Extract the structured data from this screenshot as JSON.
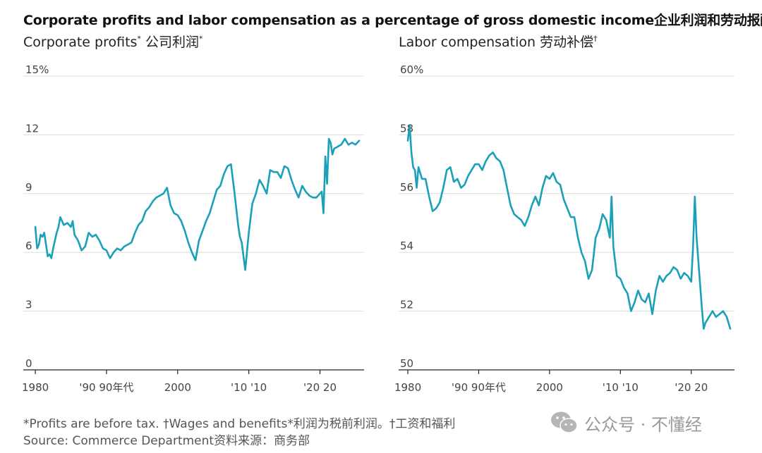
{
  "title": "Corporate profits and labor compensation as a percentage of gross domestic income企业利润和劳动报酬占",
  "footnote": "*Profits are before tax. †Wages and benefits*利润为税前利润。†工资和福利",
  "source": "Source: Commerce Department资料来源：商务部",
  "watermark": {
    "icon": "wechat-icon",
    "text": "公众号 · 不懂经"
  },
  "colors": {
    "line": "#1aa0b8",
    "grid": "#dddddd",
    "axis": "#222222",
    "text": "#444444"
  },
  "chart_data": [
    {
      "type": "line",
      "title": "Corporate profits",
      "title_mark": "*",
      "title_cn": "公司利润",
      "title_cn_mark": "*",
      "ylim": [
        0,
        15
      ],
      "yticks": [
        0,
        3,
        6,
        9,
        12,
        15
      ],
      "ytick_labels": [
        "0",
        "3",
        "6",
        "9",
        "12",
        "15%"
      ],
      "xlim": [
        1979,
        2026
      ],
      "xticks": [
        1980,
        1990,
        2000,
        2010,
        2020
      ],
      "xtick_labels": [
        "1980",
        "'90 90年代",
        "2000",
        "'10 '10",
        "'20 20"
      ],
      "series": [
        {
          "name": "Corporate profits",
          "x": [
            1980.0,
            1980.25,
            1980.5,
            1980.75,
            1981.0,
            1981.25,
            1981.5,
            1981.75,
            1982.0,
            1982.25,
            1982.5,
            1982.75,
            1983.0,
            1983.25,
            1983.5,
            1983.75,
            1984.0,
            1984.5,
            1985.0,
            1985.25,
            1985.5,
            1986.0,
            1986.5,
            1987.0,
            1987.5,
            1988.0,
            1988.5,
            1989.0,
            1989.5,
            1990.0,
            1990.5,
            1991.0,
            1991.5,
            1992.0,
            1992.5,
            1993.0,
            1993.5,
            1994.0,
            1994.5,
            1995.0,
            1995.5,
            1996.0,
            1996.5,
            1997.0,
            1997.5,
            1998.0,
            1998.5,
            1999.0,
            1999.5,
            2000.0,
            2000.5,
            2001.0,
            2001.5,
            2002.0,
            2002.5,
            2003.0,
            2003.5,
            2004.0,
            2004.5,
            2005.0,
            2005.5,
            2006.0,
            2006.5,
            2007.0,
            2007.5,
            2008.0,
            2008.5,
            2008.75,
            2009.0,
            2009.5,
            2010.0,
            2010.5,
            2011.0,
            2011.5,
            2012.0,
            2012.5,
            2013.0,
            2013.5,
            2014.0,
            2014.5,
            2015.0,
            2015.5,
            2016.0,
            2016.5,
            2017.0,
            2017.5,
            2018.0,
            2018.5,
            2019.0,
            2019.5,
            2020.0,
            2020.25,
            2020.5,
            2020.75,
            2021.0,
            2021.25,
            2021.5,
            2021.75,
            2022.0,
            2022.5,
            2023.0,
            2023.5,
            2024.0,
            2024.5,
            2025.0,
            2025.5
          ],
          "values": [
            7.3,
            6.2,
            6.4,
            6.9,
            6.8,
            7.0,
            6.4,
            5.8,
            5.9,
            5.7,
            6.2,
            6.6,
            7.0,
            7.3,
            7.8,
            7.6,
            7.4,
            7.5,
            7.3,
            7.6,
            6.9,
            6.6,
            6.1,
            6.3,
            7.0,
            6.8,
            6.9,
            6.6,
            6.2,
            6.1,
            5.7,
            6.0,
            6.2,
            6.1,
            6.3,
            6.4,
            6.5,
            7.0,
            7.4,
            7.6,
            8.1,
            8.3,
            8.6,
            8.8,
            8.9,
            9.0,
            9.3,
            8.4,
            8.0,
            7.9,
            7.6,
            7.1,
            6.5,
            6.0,
            5.6,
            6.6,
            7.1,
            7.6,
            8.0,
            8.6,
            9.2,
            9.4,
            10.0,
            10.4,
            10.5,
            9.0,
            7.4,
            6.8,
            6.5,
            5.1,
            7.0,
            8.5,
            9.0,
            9.7,
            9.4,
            9.0,
            10.2,
            10.1,
            10.1,
            9.8,
            10.4,
            10.3,
            9.7,
            9.2,
            8.8,
            9.4,
            9.1,
            8.9,
            8.8,
            8.8,
            9.0,
            9.1,
            8.0,
            10.9,
            9.5,
            11.8,
            11.6,
            11.0,
            11.3,
            11.4,
            11.5,
            11.8,
            11.5,
            11.6,
            11.5,
            11.7
          ]
        }
      ]
    },
    {
      "type": "line",
      "title": "Labor compensation",
      "title_mark": "",
      "title_cn": "劳动补偿",
      "title_cn_mark": "†",
      "ylim": [
        50,
        60
      ],
      "yticks": [
        50,
        52,
        54,
        56,
        58,
        60
      ],
      "ytick_labels": [
        "50",
        "52",
        "54",
        "56",
        "58",
        "60%"
      ],
      "xlim": [
        1979,
        2026
      ],
      "xticks": [
        1980,
        1990,
        2000,
        2010,
        2020
      ],
      "xtick_labels": [
        "1980",
        "'90 90年代",
        "2000",
        "'10 '10",
        "'20 20"
      ],
      "series": [
        {
          "name": "Labor compensation",
          "x": [
            1980.0,
            1980.25,
            1980.5,
            1980.75,
            1981.0,
            1981.25,
            1981.5,
            1982.0,
            1982.5,
            1983.0,
            1983.5,
            1984.0,
            1984.5,
            1985.0,
            1985.5,
            1986.0,
            1986.5,
            1987.0,
            1987.5,
            1988.0,
            1988.5,
            1989.0,
            1989.5,
            1990.0,
            1990.5,
            1991.0,
            1991.5,
            1992.0,
            1992.5,
            1993.0,
            1993.5,
            1994.0,
            1994.5,
            1995.0,
            1995.5,
            1996.0,
            1996.5,
            1997.0,
            1997.5,
            1998.0,
            1998.5,
            1999.0,
            1999.5,
            2000.0,
            2000.5,
            2001.0,
            2001.5,
            2002.0,
            2002.5,
            2003.0,
            2003.5,
            2004.0,
            2004.5,
            2005.0,
            2005.5,
            2006.0,
            2006.5,
            2007.0,
            2007.5,
            2008.0,
            2008.5,
            2008.75,
            2009.0,
            2009.5,
            2010.0,
            2010.5,
            2011.0,
            2011.5,
            2012.0,
            2012.5,
            2013.0,
            2013.5,
            2014.0,
            2014.5,
            2015.0,
            2015.5,
            2016.0,
            2016.5,
            2017.0,
            2017.5,
            2018.0,
            2018.5,
            2019.0,
            2019.5,
            2020.0,
            2020.25,
            2020.5,
            2020.75,
            2021.0,
            2021.25,
            2021.5,
            2021.75,
            2022.0,
            2022.5,
            2023.0,
            2023.5,
            2024.0,
            2024.5,
            2025.0,
            2025.5
          ],
          "values": [
            57.8,
            58.3,
            57.4,
            56.9,
            56.8,
            56.2,
            56.9,
            56.5,
            56.5,
            55.9,
            55.4,
            55.5,
            55.7,
            56.2,
            56.8,
            56.9,
            56.4,
            56.5,
            56.2,
            56.3,
            56.6,
            56.8,
            57.0,
            57.0,
            56.8,
            57.1,
            57.3,
            57.4,
            57.2,
            57.1,
            56.8,
            56.2,
            55.6,
            55.3,
            55.2,
            55.1,
            54.9,
            55.2,
            55.6,
            55.9,
            55.6,
            56.2,
            56.6,
            56.5,
            56.7,
            56.4,
            56.3,
            55.8,
            55.5,
            55.2,
            55.2,
            54.5,
            54.0,
            53.7,
            53.1,
            53.4,
            54.5,
            54.8,
            55.3,
            55.1,
            54.5,
            55.9,
            54.2,
            53.2,
            53.1,
            52.8,
            52.6,
            52.0,
            52.3,
            52.7,
            52.4,
            52.3,
            52.6,
            51.9,
            52.7,
            53.2,
            53.0,
            53.2,
            53.3,
            53.5,
            53.4,
            53.1,
            53.3,
            53.2,
            53.0,
            54.2,
            55.9,
            54.5,
            53.7,
            52.9,
            52.1,
            51.4,
            51.6,
            51.8,
            52.0,
            51.8,
            51.9,
            52.0,
            51.8,
            51.4
          ]
        }
      ]
    }
  ]
}
